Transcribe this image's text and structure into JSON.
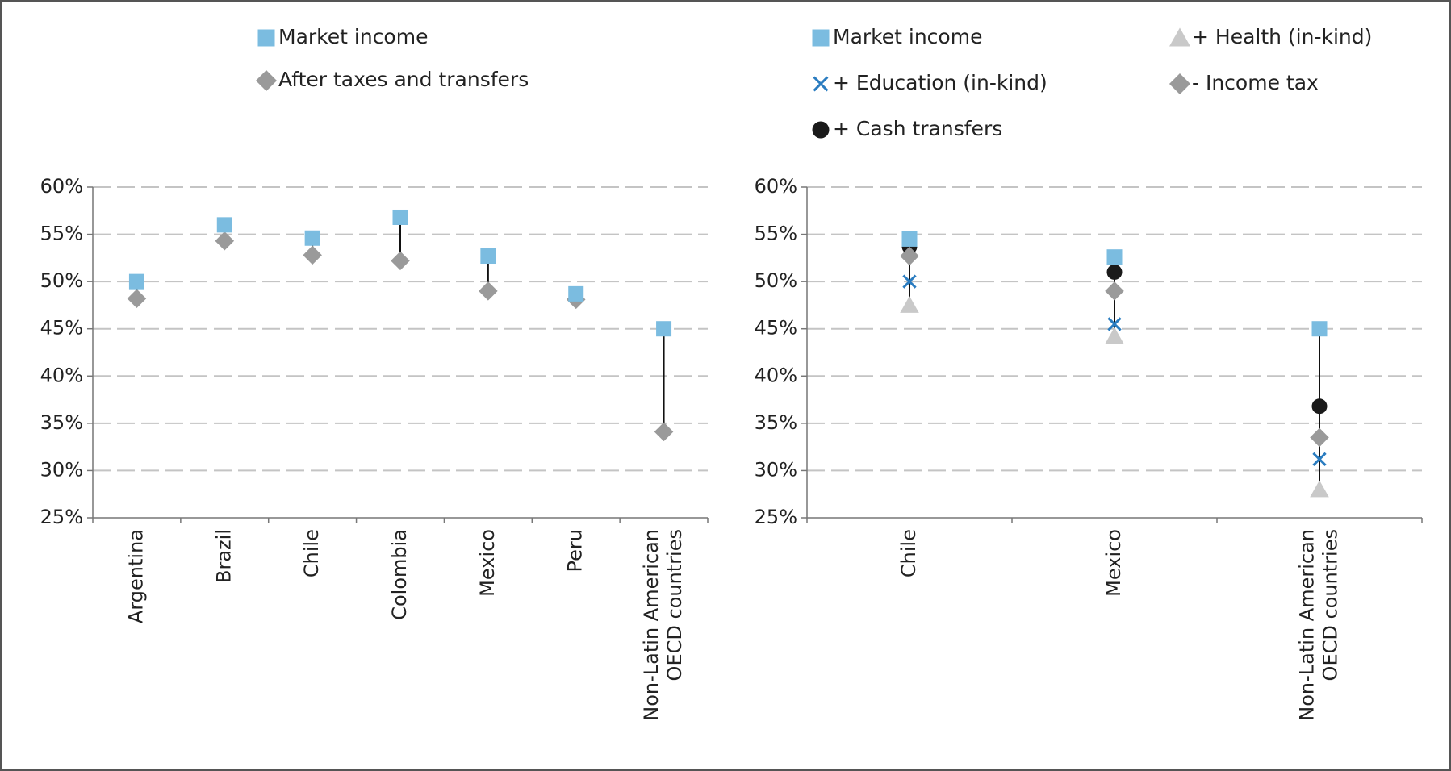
{
  "chart_data": [
    {
      "type": "dot-range",
      "categories": [
        "Argentina",
        "Brazil",
        "Chile",
        "Colombia",
        "Mexico",
        "Peru",
        "Non-Latin American\nOECD countries"
      ],
      "series": [
        {
          "name": "Market income",
          "color": "#7bbce0",
          "marker": "square",
          "values": [
            50,
            56,
            54.6,
            56.8,
            52.7,
            48.7,
            45
          ]
        },
        {
          "name": "After taxes and transfers",
          "color": "#9a9a9a",
          "marker": "diamond",
          "values": [
            48.2,
            54.3,
            52.8,
            52.2,
            49,
            48.1,
            34.1
          ]
        }
      ],
      "ylim": [
        25,
        60
      ],
      "yticks": [
        {
          "value": 25,
          "label": "25%"
        },
        {
          "value": 30,
          "label": "30%"
        },
        {
          "value": 35,
          "label": "35%"
        },
        {
          "value": 40,
          "label": "40%"
        },
        {
          "value": 45,
          "label": "45%"
        },
        {
          "value": 50,
          "label": "50%"
        },
        {
          "value": 55,
          "label": "55%"
        },
        {
          "value": 60,
          "label": "60%"
        }
      ],
      "grid": true
    },
    {
      "type": "dot-range",
      "categories": [
        "Chile",
        "Mexico",
        "Non-Latin American\nOECD countries"
      ],
      "series": [
        {
          "name": "Market income",
          "color": "#7bbce0",
          "marker": "square",
          "values": [
            54.5,
            52.6,
            45
          ]
        },
        {
          "name": "+ Health (in-kind)",
          "color": "#c9c9c9",
          "marker": "triangle",
          "values": [
            47.5,
            44.2,
            28
          ]
        },
        {
          "name": "+ Education (in-kind)",
          "color": "#2a7cc0",
          "marker": "x",
          "values": [
            50,
            45.5,
            31.2
          ]
        },
        {
          "name": "- Income tax",
          "color": "#9a9a9a",
          "marker": "diamond",
          "values": [
            52.7,
            49,
            33.5
          ]
        },
        {
          "name": "+ Cash transfers",
          "color": "#1a1a1a",
          "marker": "circle",
          "values": [
            53.7,
            51,
            36.8
          ]
        }
      ],
      "ylim": [
        25,
        60
      ],
      "yticks": [
        {
          "value": 25,
          "label": "25%"
        },
        {
          "value": 30,
          "label": "30%"
        },
        {
          "value": 35,
          "label": "35%"
        },
        {
          "value": 40,
          "label": "40%"
        },
        {
          "value": 45,
          "label": "45%"
        },
        {
          "value": 50,
          "label": "50%"
        },
        {
          "value": 55,
          "label": "55%"
        },
        {
          "value": 60,
          "label": "60%"
        }
      ],
      "grid": true
    }
  ]
}
